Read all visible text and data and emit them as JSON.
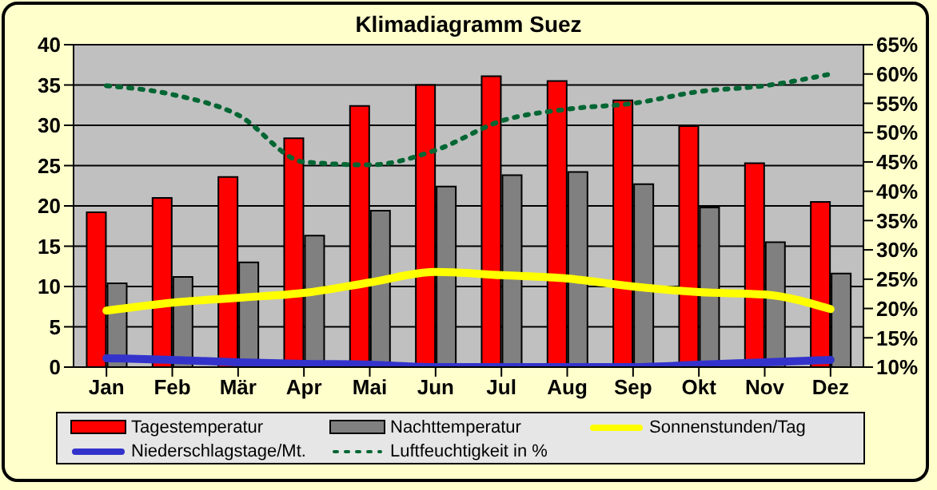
{
  "chart_data": {
    "type": "bar",
    "title": "Klimadiagramm Suez",
    "categories": [
      "Jan",
      "Feb",
      "Mär",
      "Apr",
      "Mai",
      "Jun",
      "Jul",
      "Aug",
      "Sep",
      "Okt",
      "Nov",
      "Dez"
    ],
    "series": [
      {
        "name": "Tagestemperatur",
        "color": "#ff0000",
        "values": [
          19.2,
          21,
          23.6,
          28.4,
          32.4,
          35,
          36.1,
          35.5,
          33.1,
          29.9,
          25.3,
          20.5
        ]
      },
      {
        "name": "Nachttemperatur",
        "color": "#808080",
        "values": [
          10.4,
          11.2,
          13,
          16.3,
          19.4,
          22.4,
          23.8,
          24.2,
          22.7,
          19.8,
          15.5,
          11.6
        ]
      },
      {
        "name": "Sonnenstunden/Tag",
        "type": "line",
        "color": "#ffff00",
        "line_style": "solid",
        "values": [
          7,
          8,
          8.6,
          9.2,
          10.5,
          11.8,
          11.4,
          11,
          10,
          9.3,
          9,
          7.2
        ]
      },
      {
        "name": "Niederschlagstage/Mt.",
        "type": "line",
        "color": "#3333cc",
        "line_style": "solid",
        "values": [
          1.1,
          0.9,
          0.6,
          0.4,
          0.3,
          0,
          0,
          0,
          0,
          0.3,
          0.6,
          0.9
        ]
      },
      {
        "name": "Luftfeuchtigkeit in %",
        "type": "line",
        "axis": "y2",
        "color": "#006633",
        "line_style": "dotted",
        "values": [
          58,
          56.5,
          53,
          45,
          44.5,
          47,
          52,
          54,
          55,
          57,
          58,
          60
        ]
      }
    ],
    "ylim": [
      0,
      40
    ],
    "yticks": [
      0,
      5,
      10,
      15,
      20,
      25,
      30,
      35,
      40
    ],
    "y2lim": [
      10,
      65
    ],
    "y2ticks": [
      {
        "value": 10,
        "label": "10%"
      },
      {
        "value": 15,
        "label": "15%"
      },
      {
        "value": 20,
        "label": "20%"
      },
      {
        "value": 25,
        "label": "25%"
      },
      {
        "value": 30,
        "label": "30%"
      },
      {
        "value": 35,
        "label": "35%"
      },
      {
        "value": 40,
        "label": "40%"
      },
      {
        "value": 45,
        "label": "45%"
      },
      {
        "value": 50,
        "label": "50%"
      },
      {
        "value": 55,
        "label": "55%"
      },
      {
        "value": 60,
        "label": "60%"
      },
      {
        "value": 65,
        "label": "65%"
      }
    ],
    "grid": "y",
    "legend": "bottom",
    "marker": "none"
  }
}
